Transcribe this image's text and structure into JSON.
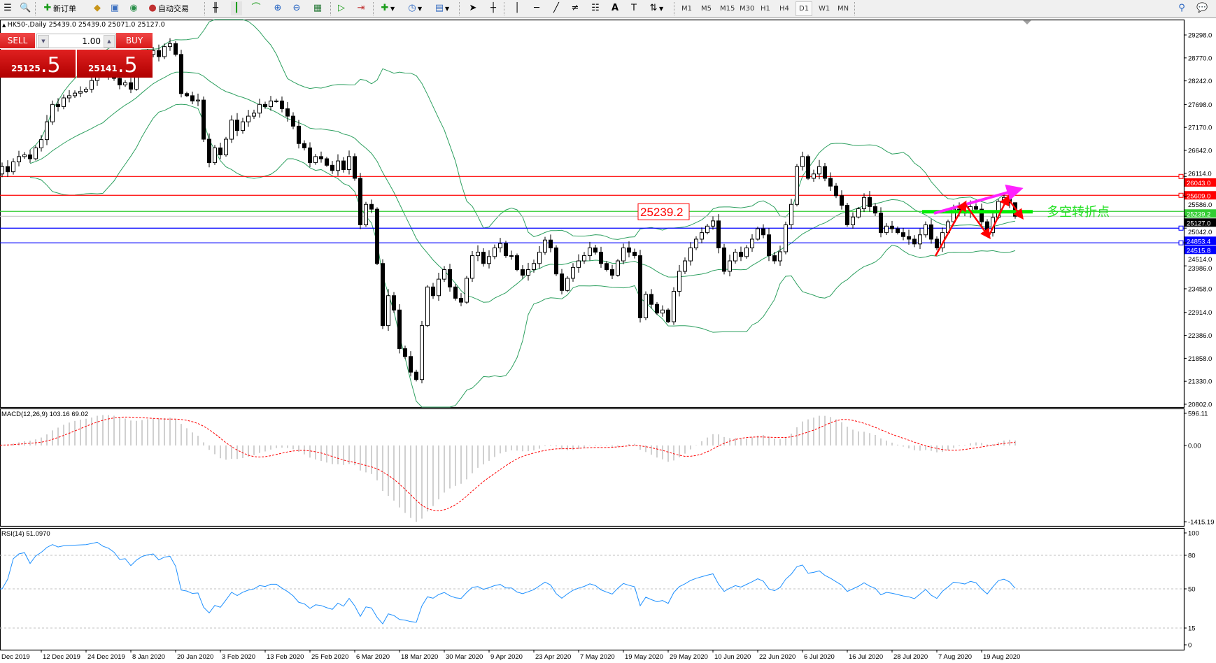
{
  "toolbar": {
    "new_order_label": "新订单",
    "auto_trading_label": "自动交易",
    "timeframes": [
      "M1",
      "M5",
      "M15",
      "M30",
      "H1",
      "H4",
      "D1",
      "W1",
      "MN"
    ],
    "selected_timeframe": "D1"
  },
  "chart": {
    "header": "HK50-,Daily  25439.0 25439.0 25071.0 25127.0",
    "trade_panel": {
      "sell_label": "SELL",
      "buy_label": "BUY",
      "lot": "1.00",
      "sell_price_main": "25125",
      "sell_price_frac": ".5",
      "buy_price_main": "25141",
      "buy_price_frac": ".5"
    },
    "annotation_price_box": "25239.2",
    "annotation_text": "多空转折点",
    "macd_label": "MACD(12,26,9) 103.16 69.02",
    "rsi_label": "RSI(14) 51.0970"
  },
  "chart_data": {
    "type": "candlestick",
    "symbol": "HK50-",
    "timeframe": "Daily",
    "close": [
      26100,
      26270,
      26150,
      26380,
      26500,
      26540,
      26450,
      26700,
      26890,
      27300,
      27700,
      27650,
      27850,
      27900,
      27960,
      28000,
      28050,
      28250,
      28500,
      28420,
      28380,
      28300,
      28150,
      28200,
      28050,
      28400,
      28700,
      28850,
      28940,
      28800,
      29030,
      29100,
      28850,
      27950,
      27900,
      27780,
      27800,
      26900,
      26360,
      26700,
      26540,
      26900,
      27340,
      27100,
      27300,
      27430,
      27500,
      27700,
      27650,
      27780,
      27780,
      27600,
      27430,
      27200,
      26800,
      26700,
      26360,
      26500,
      26450,
      26300,
      26180,
      26400,
      26200,
      26500,
      26000,
      24930,
      25400,
      25290,
      24040,
      22610,
      23300,
      22970,
      22080,
      21900,
      21540,
      21370,
      22610,
      23500,
      23300,
      23680,
      23900,
      23500,
      23240,
      23150,
      23700,
      24220,
      24300,
      24040,
      24200,
      24400,
      24500,
      24220,
      24220,
      23900,
      23770,
      23900,
      24040,
      24300,
      24580,
      24400,
      23800,
      23420,
      23700,
      23950,
      24100,
      24220,
      24400,
      24300,
      24040,
      23900,
      23770,
      24100,
      24400,
      24300,
      24220,
      22790,
      23330,
      23100,
      22900,
      22970,
      22700,
      23400,
      23860,
      24100,
      24400,
      24600,
      24750,
      24900,
      25020,
      24400,
      23860,
      24100,
      24300,
      24200,
      24400,
      24600,
      24840,
      24700,
      24220,
      24100,
      24310,
      24930,
      25400,
      26270,
      26500,
      26000,
      26100,
      26270,
      26000,
      25820,
      25600,
      25380,
      24930,
      25110,
      25300,
      25560,
      25350,
      25200,
      24750,
      24900,
      24840,
      24750,
      24660,
      24600,
      24490,
      24700,
      24930,
      24600,
      24400,
      24750,
      25000,
      25290,
      25250,
      25200,
      25350,
      25290,
      25000,
      24750,
      25100,
      25470,
      25560,
      25439,
      25127
    ],
    "last_bar": {
      "open": 25439.0,
      "high": 25439.0,
      "low": 25071.0,
      "close": 25127.0
    },
    "price_axis": [
      "29298.0",
      "28770.0",
      "28242.0",
      "27698.0",
      "27170.0",
      "26642.0",
      "26114.0",
      "25586.0",
      "25042.0",
      "24514.0",
      "23986.0",
      "23458.0",
      "22914.0",
      "22386.0",
      "21858.0",
      "21330.0",
      "20802.0"
    ],
    "ylim": [
      20802,
      29298
    ],
    "date_labels": [
      "Dec 2019",
      "12 Dec 2019",
      "24 Dec 2019",
      "8 Jan 2020",
      "20 Jan 2020",
      "3 Feb 2020",
      "13 Feb 2020",
      "25 Feb 2020",
      "6 Mar 2020",
      "18 Mar 2020",
      "30 Mar 2020",
      "9 Apr 2020",
      "23 Apr 2020",
      "7 May 2020",
      "19 May 2020",
      "29 May 2020",
      "10 Jun 2020",
      "22 Jun 2020",
      "6 Jul 2020",
      "16 Jul 2020",
      "28 Jul 2020",
      "7 Aug 2020",
      "19 Aug 2020"
    ],
    "date_label_every_bars": 8,
    "bollinger": {
      "period": 20,
      "deviation": 2,
      "color": "#2ea060"
    },
    "levels": [
      {
        "price": "26043.0",
        "color": "#ff0000"
      },
      {
        "price": "25609.0",
        "color": "#ff0000"
      },
      {
        "price": "25239.2",
        "color": "#32cd32"
      },
      {
        "price": "24853.4",
        "color": "#0000ff"
      },
      {
        "price": "24515.8",
        "color": "#0000ff"
      }
    ],
    "bid_line": {
      "price": "25127.0",
      "color": "#c0c0c0"
    },
    "macd": {
      "fast": 12,
      "slow": 26,
      "signal": 9,
      "axis": [
        "596.11",
        "0.00",
        "-1415.19"
      ],
      "ylim": [
        -1415.19,
        596.11
      ],
      "hist_color": "#c0c0c0",
      "signal_color": "#ff0000"
    },
    "rsi": {
      "period": 14,
      "axis": [
        "100",
        "80",
        "50",
        "15",
        "0"
      ],
      "levels": [
        80,
        50,
        15
      ],
      "color": "#1e90ff"
    }
  }
}
